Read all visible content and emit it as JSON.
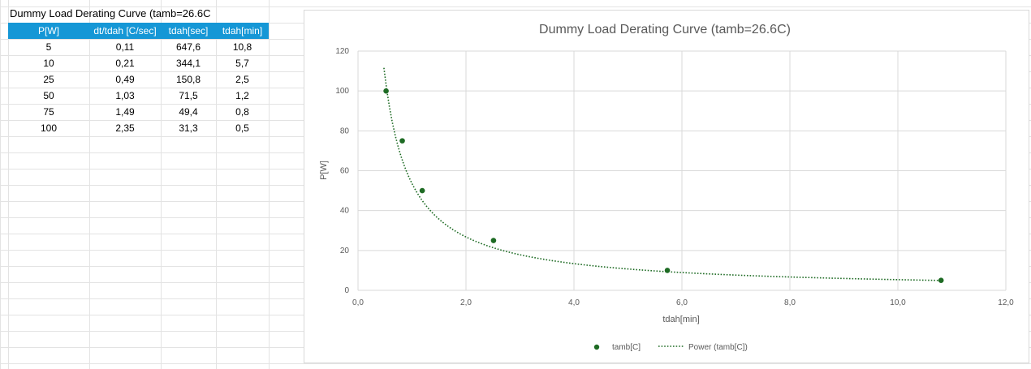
{
  "sheet": {
    "title": "Dummy Load Derating Curve (tamb=26.6C",
    "headers": [
      "P[W]",
      "dt/tdah [C/sec]",
      "tdah[sec]",
      "tdah[min]"
    ],
    "rows": [
      [
        "5",
        "0,11",
        "647,6",
        "10,8"
      ],
      [
        "10",
        "0,21",
        "344,1",
        "5,7"
      ],
      [
        "25",
        "0,49",
        "150,8",
        "2,5"
      ],
      [
        "50",
        "1,03",
        "71,5",
        "1,2"
      ],
      [
        "75",
        "1,49",
        "49,4",
        "0,8"
      ],
      [
        "100",
        "2,35",
        "31,3",
        "0,5"
      ]
    ]
  },
  "colors": {
    "header_bg": "#1597d6",
    "series": "#1e6b24",
    "gridline": "#d9d9d9"
  },
  "chart_data": {
    "type": "scatter",
    "title": "Dummy Load Derating Curve (tamb=26.6C)",
    "xlabel": "tdah[min]",
    "ylabel": "P[W]",
    "xlim": [
      0,
      12
    ],
    "ylim": [
      0,
      120
    ],
    "x_ticks": [
      "0,0",
      "2,0",
      "4,0",
      "6,0",
      "8,0",
      "10,0",
      "12,0"
    ],
    "y_ticks": [
      "0",
      "20",
      "40",
      "60",
      "80",
      "100",
      "120"
    ],
    "grid": true,
    "legend_position": "bottom",
    "series": [
      {
        "name": "tamb[C]",
        "points": [
          [
            10.8,
            5
          ],
          [
            5.73,
            10
          ],
          [
            2.51,
            25
          ],
          [
            1.19,
            50
          ],
          [
            0.82,
            75
          ],
          [
            0.52,
            100
          ]
        ]
      }
    ],
    "trendline": {
      "name": "Power (tamb[C])",
      "style": "dotted",
      "coef": 53.56,
      "exp": -1.0,
      "x_range": [
        0.48,
        10.8
      ]
    }
  }
}
